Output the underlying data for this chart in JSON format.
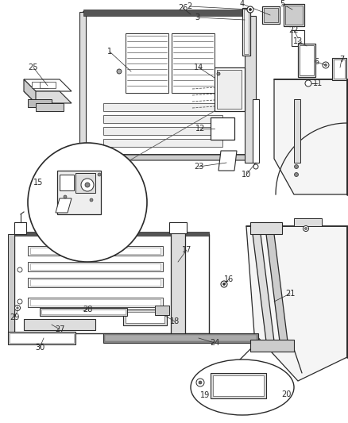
{
  "bg_color": "#ffffff",
  "line_color": "#2a2a2a",
  "gray_color": "#888888",
  "light_gray": "#cccccc",
  "label_fontsize": 7.0,
  "fig_width": 4.38,
  "fig_height": 5.33,
  "dpi": 100
}
